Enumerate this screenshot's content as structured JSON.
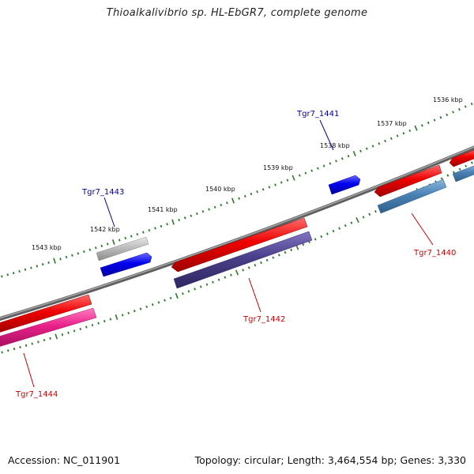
{
  "title": "Thioalkalivibrio sp. HL-EbGR7, complete genome",
  "footer": {
    "accession": "Accession: NC_011901",
    "summary": "Topology: circular; Length: 3,464,554 bp; Genes: 3,330"
  },
  "colors": {
    "backbone": "#7a7a7a",
    "tick": "#2a7a2a",
    "forward_gene": "#0000ee",
    "reverse_gene": "#ee0000",
    "label_forward": "#000099",
    "label_reverse": "#cc0000",
    "feature_gray": "#b8b8b8",
    "feature_purple": "#4a3f8a",
    "feature_steel": "#4a82b4",
    "feature_pink": "#e8208a"
  },
  "scale_labels": [
    "1536 kbp",
    "1537 kbp",
    "1538 kbp",
    "1539 kbp",
    "1540 kbp",
    "1541 kbp",
    "1542 kbp",
    "1543 kbp"
  ],
  "genes": [
    {
      "name": "Tgr7_1441",
      "strand": "forward"
    },
    {
      "name": "Tgr7_1443",
      "strand": "forward"
    },
    {
      "name": "Tgr7_1440",
      "strand": "reverse"
    },
    {
      "name": "Tgr7_1442",
      "strand": "reverse"
    },
    {
      "name": "Tgr7_1444",
      "strand": "reverse"
    }
  ]
}
